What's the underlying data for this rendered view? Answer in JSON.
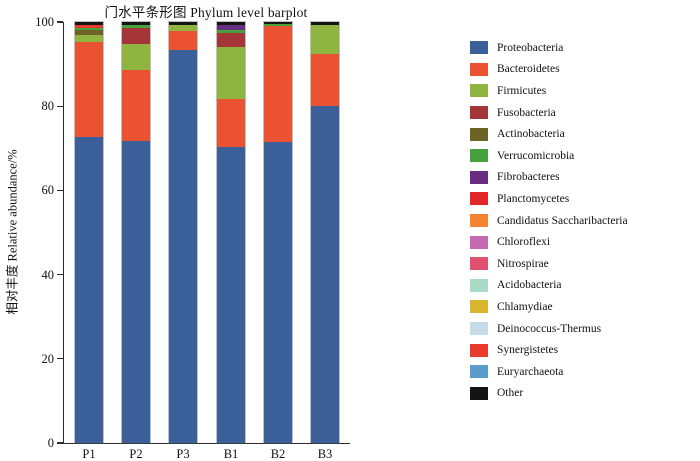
{
  "title": "门水平条形图 Phylum level barplot",
  "chart_data": {
    "type": "bar",
    "stacked": true,
    "title": "门水平条形图 Phylum level barplot",
    "ylabel": "相对丰度 Relative abundance/%",
    "xlabel": "",
    "ylim": [
      0,
      100
    ],
    "yticks": [
      0,
      20,
      40,
      60,
      80,
      100
    ],
    "grid": false,
    "legend_position": "right",
    "categories": [
      "P1",
      "P2",
      "P3",
      "B1",
      "B2",
      "B3"
    ],
    "series": [
      {
        "name": "Proteobacteria",
        "color": "#3a5f99",
        "values": [
          72.6,
          71.7,
          93.3,
          70.2,
          71.4,
          80.1
        ]
      },
      {
        "name": "Bacteroidetes",
        "color": "#ea5232",
        "values": [
          22.6,
          16.8,
          4.5,
          11.6,
          27.6,
          12.4
        ]
      },
      {
        "name": "Firmicutes",
        "color": "#8fb440",
        "values": [
          1.8,
          6.3,
          1.4,
          12.3,
          0,
          6.8
        ]
      },
      {
        "name": "Fusobacteria",
        "color": "#a43539",
        "values": [
          0,
          3.9,
          0,
          3.3,
          0,
          0
        ]
      },
      {
        "name": "Actinobacteria",
        "color": "#6c6426",
        "values": [
          1.0,
          0,
          0,
          0,
          0,
          0
        ]
      },
      {
        "name": "Verrucomicrobia",
        "color": "#47a23e",
        "values": [
          0.6,
          0.6,
          0,
          0.7,
          0.6,
          0
        ]
      },
      {
        "name": "Fibrobacteres",
        "color": "#662d80",
        "values": [
          0,
          0,
          0,
          1.1,
          0,
          0
        ]
      },
      {
        "name": "Planctomycetes",
        "color": "#e3262a",
        "values": [
          0,
          0,
          0,
          0,
          0,
          0
        ]
      },
      {
        "name": "Candidatus Saccharibacteria",
        "color": "#f58432",
        "values": [
          0,
          0,
          0,
          0,
          0,
          0
        ]
      },
      {
        "name": "Chloroflexi",
        "color": "#c56ab2",
        "values": [
          0,
          0,
          0,
          0,
          0,
          0
        ]
      },
      {
        "name": "Nitrospirae",
        "color": "#e25070",
        "values": [
          0,
          0,
          0,
          0,
          0,
          0
        ]
      },
      {
        "name": "Acidobacteria",
        "color": "#a8dcc6",
        "values": [
          0,
          0,
          0,
          0,
          0,
          0
        ]
      },
      {
        "name": "Chlamydiae",
        "color": "#d9b62f",
        "values": [
          0,
          0,
          0,
          0,
          0,
          0
        ]
      },
      {
        "name": "Deinococcus-Thermus",
        "color": "#c6dde9",
        "values": [
          0,
          0,
          0,
          0,
          0,
          0
        ]
      },
      {
        "name": "Synergistetes",
        "color": "#e93a2e",
        "values": [
          0.8,
          0,
          0,
          0,
          0,
          0
        ]
      },
      {
        "name": "Euryarchaeota",
        "color": "#5b9dca",
        "values": [
          0,
          0,
          0,
          0,
          0,
          0
        ]
      },
      {
        "name": "Other",
        "color": "#141414",
        "values": [
          0.6,
          0.7,
          0.8,
          0.8,
          0.4,
          0.7
        ]
      }
    ]
  }
}
